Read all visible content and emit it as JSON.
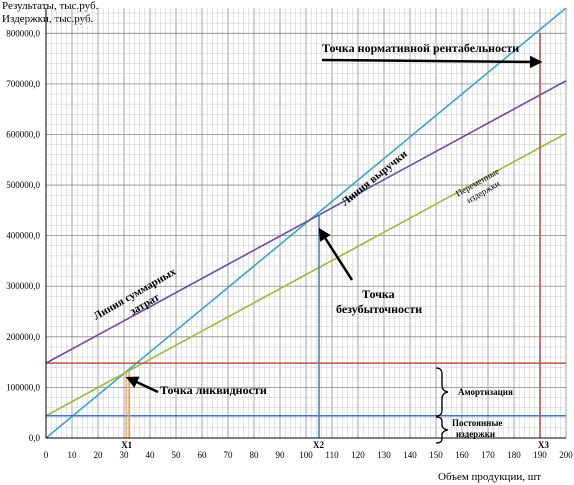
{
  "chart_data": {
    "type": "line",
    "ylabel": [
      "Результаты, тыс.руб.",
      "Издержки, тыс.руб."
    ],
    "xlabel": "Объем продукции, шт",
    "xlim": [
      0,
      200
    ],
    "ylim": [
      0,
      850000
    ],
    "x_ticks": [
      0,
      10,
      20,
      30,
      40,
      50,
      60,
      70,
      80,
      90,
      100,
      110,
      120,
      130,
      140,
      150,
      160,
      170,
      180,
      190,
      200
    ],
    "y_ticks": [
      {
        "v": 0,
        "label": "0,0"
      },
      {
        "v": 100000,
        "label": "100000,0"
      },
      {
        "v": 200000,
        "label": "200000,0"
      },
      {
        "v": 300000,
        "label": "300000,0"
      },
      {
        "v": 400000,
        "label": "400000,0"
      },
      {
        "v": 500000,
        "label": "500000,0"
      },
      {
        "v": 600000,
        "label": "600000,0"
      },
      {
        "v": 700000,
        "label": "700000,0"
      },
      {
        "v": 800000,
        "label": "800000,0"
      }
    ],
    "series": [
      {
        "name": "Линия выручки",
        "color": "#3aa6c4",
        "points": [
          [
            0,
            0
          ],
          [
            200,
            850000
          ]
        ]
      },
      {
        "name": "Линия суммарных затрат",
        "color": "#6a4fa0",
        "points": [
          [
            0,
            148000
          ],
          [
            200,
            706000
          ]
        ]
      },
      {
        "name": "Переменные издержки",
        "color": "#9bbb3a",
        "points": [
          [
            0,
            44000
          ],
          [
            200,
            602000
          ]
        ]
      },
      {
        "name": "Амортизация",
        "color": "#c0504d",
        "points": [
          [
            0,
            148000
          ],
          [
            200,
            148000
          ]
        ]
      },
      {
        "name": "Постоянные издержки",
        "color": "#4472c4",
        "points": [
          [
            0,
            44000
          ],
          [
            200,
            44000
          ]
        ]
      }
    ],
    "markers": [
      {
        "name": "X1",
        "x": 32,
        "y": 131000,
        "color": "#f79646"
      },
      {
        "name": "X2",
        "x": 105,
        "y": 443000,
        "color": "#4f81bd"
      },
      {
        "name": "X3",
        "x": 190,
        "y": 800000,
        "color": "#c0504d"
      }
    ],
    "annotations": {
      "norm_point": "Точка нормативной рентабельности",
      "revenue_line": "Линия выручки",
      "variable_costs": [
        "Переменные",
        "издержки"
      ],
      "total_costs": [
        "Линия суммарных",
        "затрат"
      ],
      "breakeven": [
        "Точка",
        "безубыточности"
      ],
      "liquidity": "Точка ликвидности",
      "amortization": "Амортизация",
      "fixed_costs": [
        "Постоянные",
        "издержки"
      ]
    },
    "grid": true
  }
}
